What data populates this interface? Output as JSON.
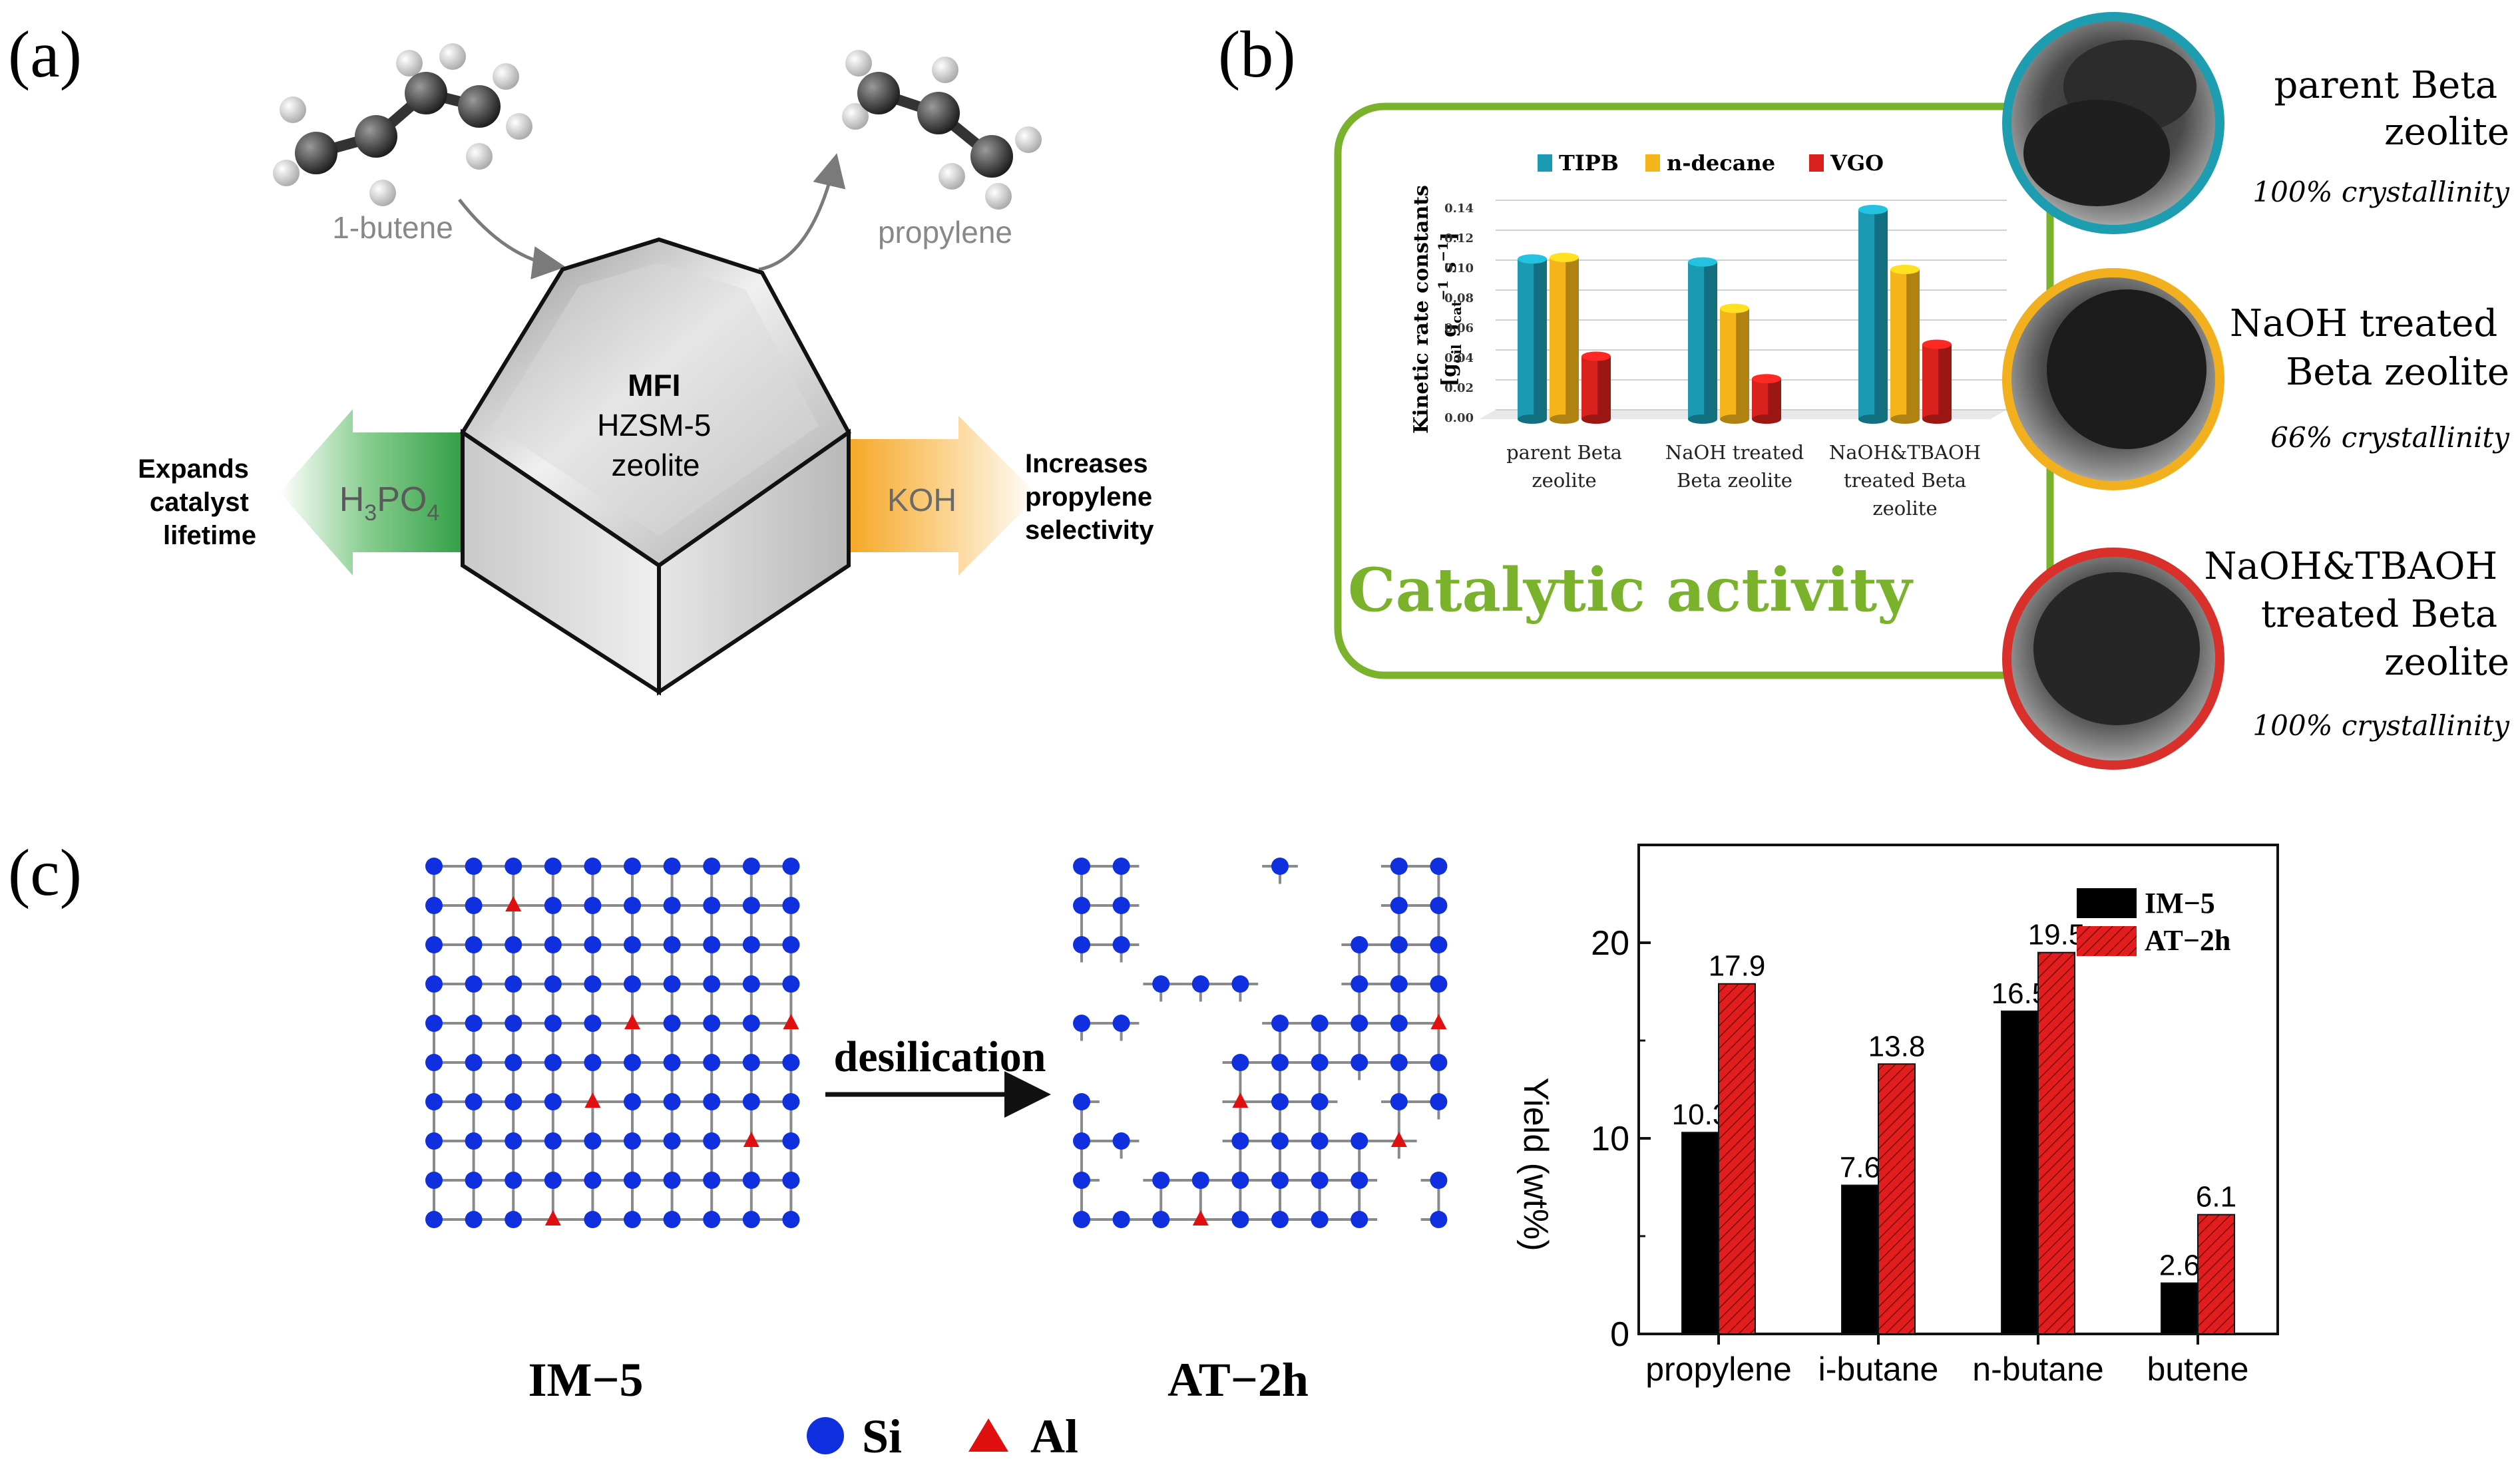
{
  "figure": {
    "panel_labels": {
      "a": "(a)",
      "b": "(b)",
      "c": "(c)"
    }
  },
  "panel_a": {
    "reactant": "1-butene",
    "product": "propylene",
    "zeolite_lines": [
      "MFI",
      "HZSM-5",
      "zeolite"
    ],
    "left_arrow": {
      "reagent_main": "H",
      "reagent_sub1": "3",
      "reagent_mid": "PO",
      "reagent_sub2": "4",
      "effect_lines": [
        "Expands",
        "catalyst",
        "lifetime"
      ],
      "color": "#3aa64a"
    },
    "right_arrow": {
      "reagent": "KOH",
      "effect_lines": [
        "Increases",
        "propylene",
        "selectivity"
      ],
      "color": "#f5a623"
    }
  },
  "panel_b": {
    "box_title": "Catalytic activity",
    "box_color": "#7ab22b",
    "samples": [
      {
        "name_lines": [
          "parent Beta",
          "zeolite"
        ],
        "crystallinity": "100% crystallinity",
        "ring_color": "#1f9db0"
      },
      {
        "name_lines": [
          "NaOH treated",
          "Beta zeolite"
        ],
        "crystallinity": "66% crystallinity",
        "ring_color": "#f2b01e"
      },
      {
        "name_lines": [
          "NaOH&TBAOH",
          "treated Beta",
          "zeolite"
        ],
        "crystallinity": "100% crystallinity",
        "ring_color": "#d9302c"
      }
    ]
  },
  "panel_c": {
    "left_grid_label": "IM−5",
    "right_grid_label": "AT−2h",
    "process_label": "desilication",
    "legend": {
      "si": "Si",
      "al": "Al",
      "si_color": "#1030e0",
      "al_color": "#e01010"
    }
  },
  "chart_data": [
    {
      "type": "bar",
      "title": "",
      "categories": [
        "parent Beta zeolite",
        "NaOH treated Beta zeolite",
        "NaOH&TBAOH treated Beta zeolite"
      ],
      "category_label_lines": [
        [
          "parent Beta",
          "zeolite"
        ],
        [
          "NaOH treated",
          "Beta zeolite"
        ],
        [
          "NaOH&TBAOH",
          "treated Beta",
          "zeolite"
        ]
      ],
      "series": [
        {
          "name": "TIPB",
          "values": [
            0.107,
            0.105,
            0.14
          ],
          "color": "#1b9bb3"
        },
        {
          "name": "n-decane",
          "values": [
            0.108,
            0.074,
            0.1
          ],
          "color": "#f5b41a"
        },
        {
          "name": "VGO",
          "values": [
            0.042,
            0.027,
            0.05
          ],
          "color": "#d8201c"
        }
      ],
      "ylabel_parts": {
        "main": "Kinetic rate constants",
        "expr_a": "[g",
        "sub_a": "oil",
        "expr_b": " g",
        "sub_b": "cat",
        "sup_b": "−1",
        "expr_c": " s",
        "sup_c": "−1",
        "expr_d": "]"
      },
      "yticks": [
        "0.00",
        "0.02",
        "0.04",
        "0.06",
        "0.08",
        "0.10",
        "0.12",
        "0.14"
      ],
      "ylim": [
        0,
        0.14
      ],
      "legend_position": "top"
    },
    {
      "type": "bar",
      "title": "",
      "categories": [
        "propylene",
        "i-butane",
        "n-butane",
        "butene"
      ],
      "series": [
        {
          "name": "IM−5",
          "values": [
            10.3,
            7.6,
            16.5,
            2.6
          ],
          "labels": [
            "10.3",
            "7.6",
            "16.5",
            "2.6"
          ],
          "color": "#000000"
        },
        {
          "name": "AT−2h",
          "values": [
            17.9,
            13.8,
            19.5,
            6.1
          ],
          "labels": [
            "17.9",
            "13.8",
            "19.5",
            "6.1"
          ],
          "color": "#e21d1d"
        }
      ],
      "ylabel": "Yield (wt%)",
      "yticks": [
        "0",
        "10",
        "20"
      ],
      "ylim": [
        0,
        25
      ],
      "legend_position": "top-right"
    }
  ]
}
